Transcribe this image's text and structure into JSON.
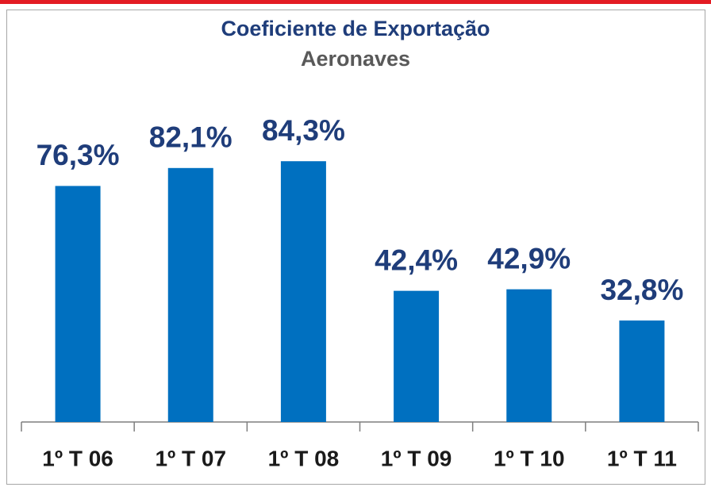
{
  "chart_data": {
    "type": "bar",
    "title": "Coeficiente de Exportação",
    "subtitle": "Aeronaves",
    "categories": [
      "1º T 06",
      "1º T 07",
      "1º T 08",
      "1º T 09",
      "1º T 10",
      "1º T 11"
    ],
    "values": [
      76.3,
      82.1,
      84.3,
      42.4,
      42.9,
      32.8
    ],
    "value_labels": [
      "76,3%",
      "82,1%",
      "84,3%",
      "42,4%",
      "42,9%",
      "32,8%"
    ],
    "color": "#0070c0",
    "ylim": [
      0,
      100
    ]
  }
}
